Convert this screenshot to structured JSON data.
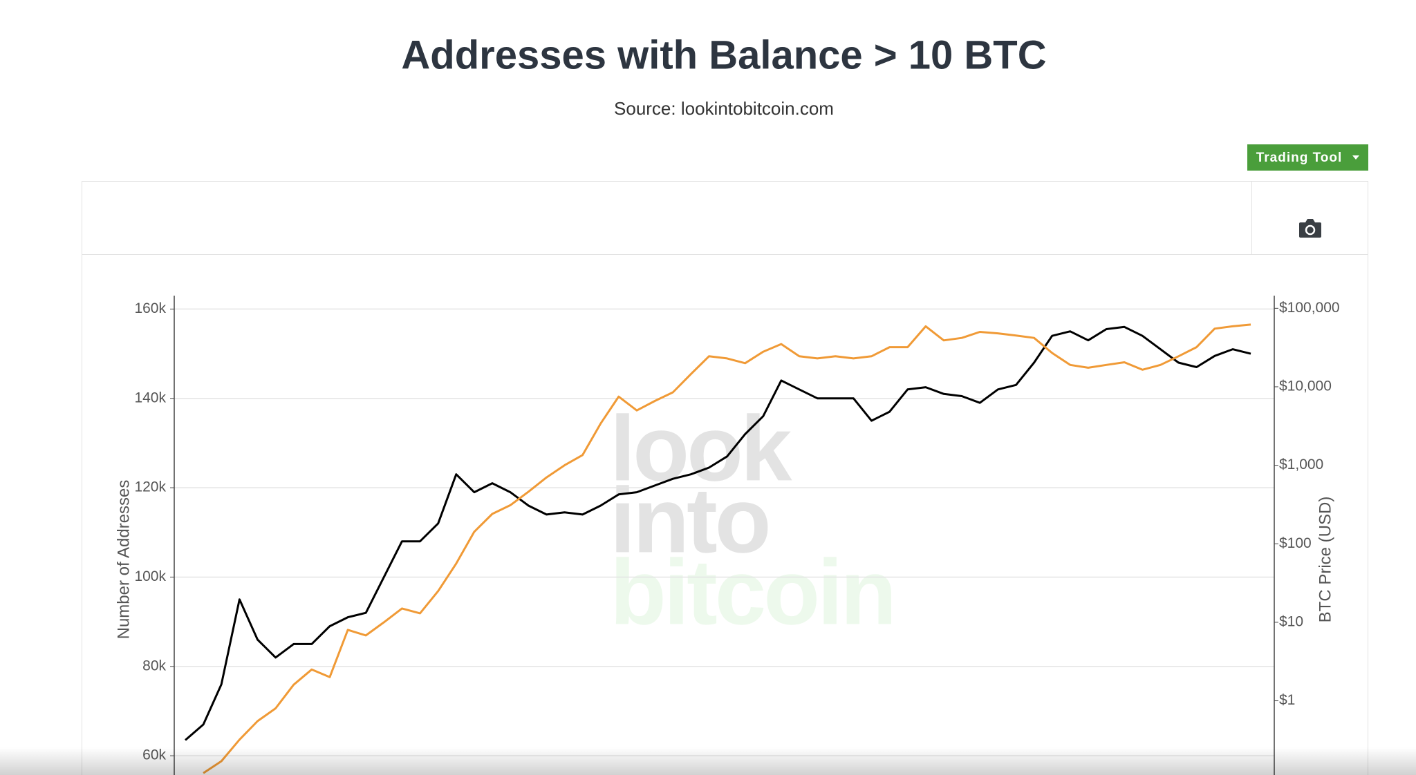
{
  "ui": {
    "button_label": "Trading Tool"
  },
  "chart_data": {
    "type": "line",
    "title": "Addresses with Balance > 10 BTC",
    "subtitle": "Source: lookintobitcoin.com",
    "watermark": [
      "look",
      "into",
      "bitcoin"
    ],
    "y_label": "Number of Addresses",
    "y2_label": "BTC Price (USD)",
    "ylim": [
      56000,
      163000
    ],
    "yticks": [
      {
        "value": 60000,
        "label": "60k"
      },
      {
        "value": 80000,
        "label": "80k"
      },
      {
        "value": 100000,
        "label": "100k"
      },
      {
        "value": 120000,
        "label": "120k"
      },
      {
        "value": 140000,
        "label": "140k"
      },
      {
        "value": 160000,
        "label": "160k"
      }
    ],
    "y2lim": [
      0.118,
      145000
    ],
    "y2_log": true,
    "y2ticks": [
      {
        "value": 1,
        "label": "$1"
      },
      {
        "value": 10,
        "label": "$10"
      },
      {
        "value": 100,
        "label": "$100"
      },
      {
        "value": 1000,
        "label": "$1,000"
      },
      {
        "value": 10000,
        "label": "$10,000"
      },
      {
        "value": 100000,
        "label": "$100,000"
      }
    ],
    "grid": true,
    "series": [
      {
        "color": "#000000",
        "values": [
          63500,
          67000,
          76000,
          95000,
          86000,
          82000,
          85000,
          85000,
          89000,
          91000,
          92000,
          100000,
          108000,
          108000,
          112000,
          123000,
          119000,
          121000,
          119000,
          116000,
          114000,
          114500,
          114000,
          116000,
          118500,
          119000,
          120500,
          122000,
          123000,
          124500,
          127000,
          132000,
          136000,
          144000,
          142000,
          140000,
          140000,
          140000,
          135000,
          137000,
          142000,
          142500,
          141000,
          140500,
          139000,
          142000,
          143000,
          148000,
          154000,
          155000,
          153000,
          155500,
          156000,
          154000,
          151000,
          148000,
          147000,
          149500,
          151000,
          150000
        ]
      },
      {
        "color": "#f09a36",
        "axis": "y2",
        "values": [
          null,
          0.12,
          0.17,
          0.32,
          0.55,
          0.8,
          1.6,
          2.5,
          2,
          8,
          6.8,
          10,
          15,
          13,
          25,
          56,
          142,
          240,
          310,
          460,
          700,
          1000,
          1350,
          3400,
          7500,
          5000,
          6600,
          8500,
          14500,
          24500,
          23000,
          20000,
          28000,
          35000,
          24500,
          23000,
          24500,
          23000,
          24500,
          32000,
          32000,
          59000,
          39000,
          42000,
          50000,
          48000,
          45000,
          42000,
          27000,
          19000,
          17500,
          19000,
          20500,
          16500,
          19000,
          24500,
          32000,
          55000,
          59000,
          62000
        ]
      }
    ]
  }
}
